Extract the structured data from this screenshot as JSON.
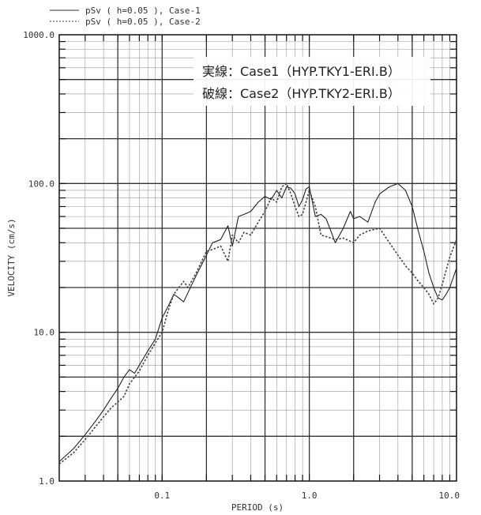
{
  "legend": {
    "entries": [
      {
        "label": "pSv ( h=0.05 ), Case-1",
        "style": "solid"
      },
      {
        "label": "pSv ( h=0.05 ), Case-2",
        "style": "dashed"
      }
    ]
  },
  "annotation": {
    "line1": "実線：Case1（HYP.TKY1-ERI.B）",
    "line2": "破線：Case2（HYP.TKY2-ERI.B）"
  },
  "chart_data": {
    "type": "line",
    "title": "",
    "xlabel": "PERIOD (s)",
    "ylabel": "VELOCITY (cm/s)",
    "x_scale": "log",
    "y_scale": "log",
    "xlim": [
      0.02,
      10.0
    ],
    "ylim": [
      1.0,
      1000.0
    ],
    "grid": true,
    "legend_position": "top-left, above plot",
    "x_tick_labels": [
      {
        "value": 0.1,
        "label": "0.1"
      },
      {
        "value": 1.0,
        "label": "1.0"
      },
      {
        "value": 10.0,
        "label": "10.0"
      }
    ],
    "y_tick_labels": [
      {
        "value": 1.0,
        "label": "1.0"
      },
      {
        "value": 10.0,
        "label": "10.0"
      },
      {
        "value": 100.0,
        "label": "100.0"
      },
      {
        "value": 1000.0,
        "label": "1000.0"
      }
    ],
    "series": [
      {
        "name": "pSv ( h=0.05 ), Case-1",
        "style": "solid",
        "color": "#222222",
        "x": [
          0.02,
          0.025,
          0.03,
          0.035,
          0.04,
          0.045,
          0.05,
          0.055,
          0.06,
          0.065,
          0.07,
          0.08,
          0.09,
          0.1,
          0.11,
          0.12,
          0.13,
          0.14,
          0.15,
          0.17,
          0.2,
          0.22,
          0.25,
          0.28,
          0.3,
          0.33,
          0.36,
          0.4,
          0.45,
          0.5,
          0.55,
          0.6,
          0.65,
          0.7,
          0.75,
          0.8,
          0.85,
          0.9,
          0.95,
          1.0,
          1.1,
          1.2,
          1.3,
          1.4,
          1.5,
          1.7,
          1.9,
          2.0,
          2.2,
          2.5,
          2.8,
          3.0,
          3.5,
          4.0,
          4.5,
          5.0,
          5.5,
          6.0,
          6.5,
          7.0,
          7.5,
          8.0,
          8.5,
          9.0,
          10.0
        ],
        "values": [
          1.35,
          1.65,
          2.05,
          2.5,
          3.0,
          3.6,
          4.2,
          5.0,
          5.6,
          5.3,
          6.0,
          7.5,
          9.0,
          12.5,
          15.0,
          18.0,
          17.0,
          16.0,
          18.5,
          24.0,
          33.0,
          40.0,
          42.0,
          52.0,
          38.0,
          60.0,
          62.0,
          65.0,
          75.0,
          82.0,
          78.0,
          90.0,
          80.0,
          95.0,
          93.0,
          85.0,
          70.0,
          78.0,
          92.0,
          95.0,
          60.0,
          62.0,
          58.0,
          48.0,
          40.0,
          50.0,
          65.0,
          58.0,
          60.0,
          55.0,
          75.0,
          85.0,
          95.0,
          100.0,
          90.0,
          70.0,
          48.0,
          35.0,
          25.0,
          20.0,
          17.0,
          16.5,
          18.0,
          20.0,
          27.0
        ]
      },
      {
        "name": "pSv ( h=0.05 ), Case-2",
        "style": "dashed",
        "color": "#444444",
        "x": [
          0.02,
          0.025,
          0.03,
          0.035,
          0.04,
          0.045,
          0.05,
          0.055,
          0.06,
          0.07,
          0.08,
          0.09,
          0.1,
          0.11,
          0.12,
          0.13,
          0.14,
          0.15,
          0.17,
          0.2,
          0.22,
          0.25,
          0.28,
          0.3,
          0.33,
          0.36,
          0.4,
          0.45,
          0.5,
          0.55,
          0.6,
          0.65,
          0.7,
          0.75,
          0.8,
          0.85,
          0.9,
          1.0,
          1.1,
          1.2,
          1.3,
          1.5,
          1.7,
          2.0,
          2.2,
          2.5,
          3.0,
          3.5,
          4.0,
          4.5,
          5.0,
          5.5,
          6.0,
          6.5,
          7.0,
          7.5,
          8.0,
          9.0,
          10.0
        ],
        "values": [
          1.3,
          1.55,
          1.9,
          2.3,
          2.7,
          3.1,
          3.4,
          3.7,
          4.5,
          5.5,
          7.0,
          8.5,
          10.0,
          14.0,
          18.0,
          20.0,
          22.0,
          20.0,
          25.0,
          35.0,
          36.0,
          38.0,
          30.0,
          45.0,
          40.0,
          47.0,
          45.0,
          55.0,
          65.0,
          80.0,
          75.0,
          95.0,
          100.0,
          85.0,
          70.0,
          60.0,
          62.0,
          90.0,
          70.0,
          45.0,
          44.0,
          42.0,
          43.0,
          40.0,
          45.0,
          48.0,
          50.0,
          40.0,
          33.0,
          28.0,
          25.0,
          22.0,
          20.0,
          18.0,
          15.5,
          17.0,
          21.0,
          32.0,
          42.0
        ]
      }
    ]
  }
}
